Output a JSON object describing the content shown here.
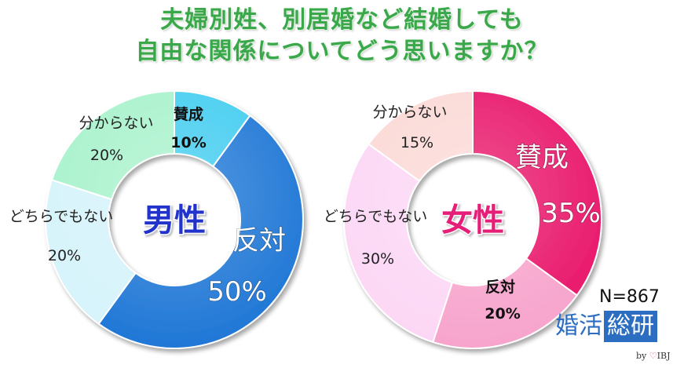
{
  "title": {
    "line1": "夫婦別姓、別居婚など結婚しても",
    "line2": "自由な関係についてどう思いますか？"
  },
  "note": "N=867",
  "logo": {
    "text_main": "婚活",
    "text_box": "総研",
    "by": "by",
    "brand": "IBJ"
  },
  "chart_data": [
    {
      "type": "pie",
      "donut": true,
      "center_label": "男性",
      "center_color": "#2233cc",
      "slices": [
        {
          "label": "賛成",
          "value": 10,
          "value_text": "10%",
          "color": "#44cdf0"
        },
        {
          "label": "反対",
          "value": 50,
          "value_text": "50%",
          "color": "#1f77d6"
        },
        {
          "label": "どちらでもない",
          "value": 20,
          "value_text": "20%",
          "color": "#d6f3fb"
        },
        {
          "label": "分からない",
          "value": 20,
          "value_text": "20%",
          "color": "#a8f2cc"
        }
      ]
    },
    {
      "type": "pie",
      "donut": true,
      "center_label": "女性",
      "center_color": "#e51f77",
      "slices": [
        {
          "label": "賛成",
          "value": 35,
          "value_text": "35%",
          "color": "#e9166a"
        },
        {
          "label": "反対",
          "value": 20,
          "value_text": "20%",
          "color": "#f7a4cc"
        },
        {
          "label": "どちらでもない",
          "value": 30,
          "value_text": "30%",
          "color": "#fcd7f5"
        },
        {
          "label": "分からない",
          "value": 15,
          "value_text": "15%",
          "color": "#fbd9d6"
        }
      ]
    }
  ]
}
